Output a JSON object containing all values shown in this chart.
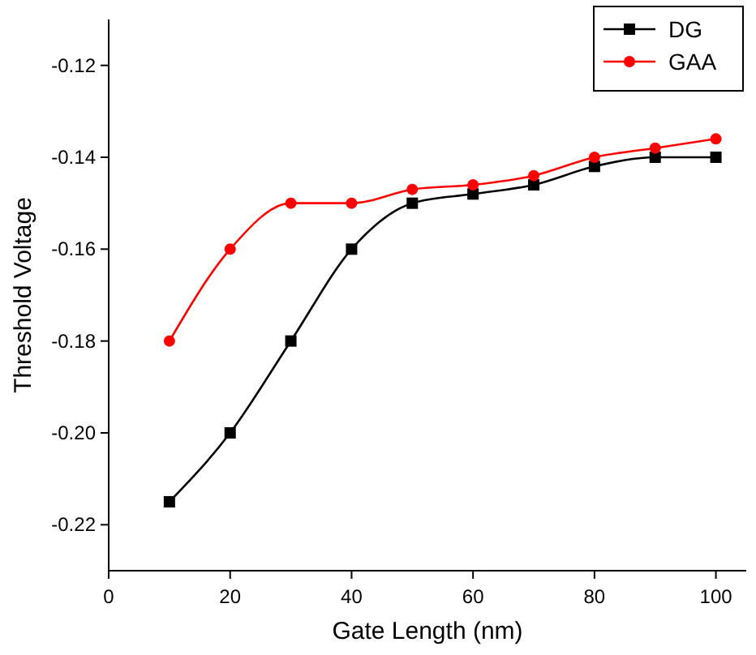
{
  "chart_data": {
    "type": "line",
    "xlabel": "Gate Length (nm)",
    "ylabel": "Threshold Voltage",
    "x": [
      10,
      20,
      30,
      40,
      50,
      60,
      70,
      80,
      90,
      100
    ],
    "series": [
      {
        "name": "DG",
        "color": "#000000",
        "marker": "square",
        "values": [
          -0.215,
          -0.2,
          -0.18,
          -0.16,
          -0.15,
          -0.148,
          -0.146,
          -0.142,
          -0.14,
          -0.14
        ]
      },
      {
        "name": "GAA",
        "color": "#ff0000",
        "marker": "circle",
        "values": [
          -0.18,
          -0.16,
          -0.15,
          -0.15,
          -0.147,
          -0.146,
          -0.144,
          -0.14,
          -0.138,
          -0.136
        ]
      }
    ],
    "xlim": [
      0,
      105
    ],
    "xticks": [
      0,
      20,
      40,
      60,
      80,
      100
    ],
    "ylim": [
      -0.23,
      -0.11
    ],
    "yticks": [
      {
        "value": -0.22,
        "label": "-0.22"
      },
      {
        "value": -0.2,
        "label": "-0.20"
      },
      {
        "value": -0.18,
        "label": "-0.18"
      },
      {
        "value": -0.16,
        "label": "-0.16"
      },
      {
        "value": -0.14,
        "label": "-0.14"
      },
      {
        "value": -0.12,
        "label": "-0.12"
      }
    ],
    "grid": false,
    "legend": "top right",
    "line_style": "solid"
  }
}
